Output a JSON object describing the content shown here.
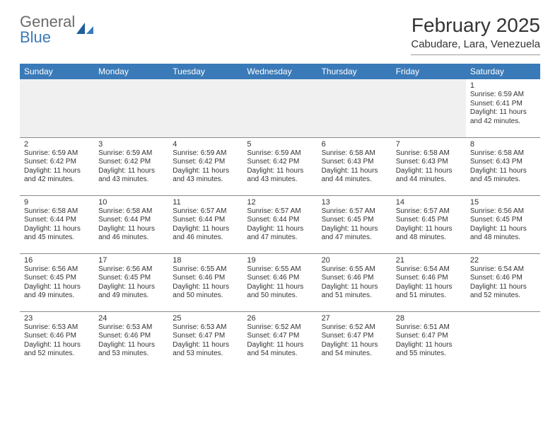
{
  "logo": {
    "text1": "General",
    "text2": "Blue"
  },
  "title": "February 2025",
  "subtitle": "Cabudare, Lara, Venezuela",
  "colors": {
    "header_bg": "#3a7ab8",
    "header_fg": "#ffffff",
    "blank_bg": "#f0f0f0",
    "rule": "#8a8a8a",
    "logo_gray": "#6b6b6b",
    "logo_blue": "#3a7ab8"
  },
  "weekdays": [
    "Sunday",
    "Monday",
    "Tuesday",
    "Wednesday",
    "Thursday",
    "Friday",
    "Saturday"
  ],
  "weeks": [
    [
      null,
      null,
      null,
      null,
      null,
      null,
      {
        "d": "1",
        "sr": "Sunrise: 6:59 AM",
        "ss": "Sunset: 6:41 PM",
        "dl": "Daylight: 11 hours and 42 minutes."
      }
    ],
    [
      {
        "d": "2",
        "sr": "Sunrise: 6:59 AM",
        "ss": "Sunset: 6:42 PM",
        "dl": "Daylight: 11 hours and 42 minutes."
      },
      {
        "d": "3",
        "sr": "Sunrise: 6:59 AM",
        "ss": "Sunset: 6:42 PM",
        "dl": "Daylight: 11 hours and 43 minutes."
      },
      {
        "d": "4",
        "sr": "Sunrise: 6:59 AM",
        "ss": "Sunset: 6:42 PM",
        "dl": "Daylight: 11 hours and 43 minutes."
      },
      {
        "d": "5",
        "sr": "Sunrise: 6:59 AM",
        "ss": "Sunset: 6:42 PM",
        "dl": "Daylight: 11 hours and 43 minutes."
      },
      {
        "d": "6",
        "sr": "Sunrise: 6:58 AM",
        "ss": "Sunset: 6:43 PM",
        "dl": "Daylight: 11 hours and 44 minutes."
      },
      {
        "d": "7",
        "sr": "Sunrise: 6:58 AM",
        "ss": "Sunset: 6:43 PM",
        "dl": "Daylight: 11 hours and 44 minutes."
      },
      {
        "d": "8",
        "sr": "Sunrise: 6:58 AM",
        "ss": "Sunset: 6:43 PM",
        "dl": "Daylight: 11 hours and 45 minutes."
      }
    ],
    [
      {
        "d": "9",
        "sr": "Sunrise: 6:58 AM",
        "ss": "Sunset: 6:44 PM",
        "dl": "Daylight: 11 hours and 45 minutes."
      },
      {
        "d": "10",
        "sr": "Sunrise: 6:58 AM",
        "ss": "Sunset: 6:44 PM",
        "dl": "Daylight: 11 hours and 46 minutes."
      },
      {
        "d": "11",
        "sr": "Sunrise: 6:57 AM",
        "ss": "Sunset: 6:44 PM",
        "dl": "Daylight: 11 hours and 46 minutes."
      },
      {
        "d": "12",
        "sr": "Sunrise: 6:57 AM",
        "ss": "Sunset: 6:44 PM",
        "dl": "Daylight: 11 hours and 47 minutes."
      },
      {
        "d": "13",
        "sr": "Sunrise: 6:57 AM",
        "ss": "Sunset: 6:45 PM",
        "dl": "Daylight: 11 hours and 47 minutes."
      },
      {
        "d": "14",
        "sr": "Sunrise: 6:57 AM",
        "ss": "Sunset: 6:45 PM",
        "dl": "Daylight: 11 hours and 48 minutes."
      },
      {
        "d": "15",
        "sr": "Sunrise: 6:56 AM",
        "ss": "Sunset: 6:45 PM",
        "dl": "Daylight: 11 hours and 48 minutes."
      }
    ],
    [
      {
        "d": "16",
        "sr": "Sunrise: 6:56 AM",
        "ss": "Sunset: 6:45 PM",
        "dl": "Daylight: 11 hours and 49 minutes."
      },
      {
        "d": "17",
        "sr": "Sunrise: 6:56 AM",
        "ss": "Sunset: 6:45 PM",
        "dl": "Daylight: 11 hours and 49 minutes."
      },
      {
        "d": "18",
        "sr": "Sunrise: 6:55 AM",
        "ss": "Sunset: 6:46 PM",
        "dl": "Daylight: 11 hours and 50 minutes."
      },
      {
        "d": "19",
        "sr": "Sunrise: 6:55 AM",
        "ss": "Sunset: 6:46 PM",
        "dl": "Daylight: 11 hours and 50 minutes."
      },
      {
        "d": "20",
        "sr": "Sunrise: 6:55 AM",
        "ss": "Sunset: 6:46 PM",
        "dl": "Daylight: 11 hours and 51 minutes."
      },
      {
        "d": "21",
        "sr": "Sunrise: 6:54 AM",
        "ss": "Sunset: 6:46 PM",
        "dl": "Daylight: 11 hours and 51 minutes."
      },
      {
        "d": "22",
        "sr": "Sunrise: 6:54 AM",
        "ss": "Sunset: 6:46 PM",
        "dl": "Daylight: 11 hours and 52 minutes."
      }
    ],
    [
      {
        "d": "23",
        "sr": "Sunrise: 6:53 AM",
        "ss": "Sunset: 6:46 PM",
        "dl": "Daylight: 11 hours and 52 minutes."
      },
      {
        "d": "24",
        "sr": "Sunrise: 6:53 AM",
        "ss": "Sunset: 6:46 PM",
        "dl": "Daylight: 11 hours and 53 minutes."
      },
      {
        "d": "25",
        "sr": "Sunrise: 6:53 AM",
        "ss": "Sunset: 6:47 PM",
        "dl": "Daylight: 11 hours and 53 minutes."
      },
      {
        "d": "26",
        "sr": "Sunrise: 6:52 AM",
        "ss": "Sunset: 6:47 PM",
        "dl": "Daylight: 11 hours and 54 minutes."
      },
      {
        "d": "27",
        "sr": "Sunrise: 6:52 AM",
        "ss": "Sunset: 6:47 PM",
        "dl": "Daylight: 11 hours and 54 minutes."
      },
      {
        "d": "28",
        "sr": "Sunrise: 6:51 AM",
        "ss": "Sunset: 6:47 PM",
        "dl": "Daylight: 11 hours and 55 minutes."
      },
      null
    ]
  ]
}
